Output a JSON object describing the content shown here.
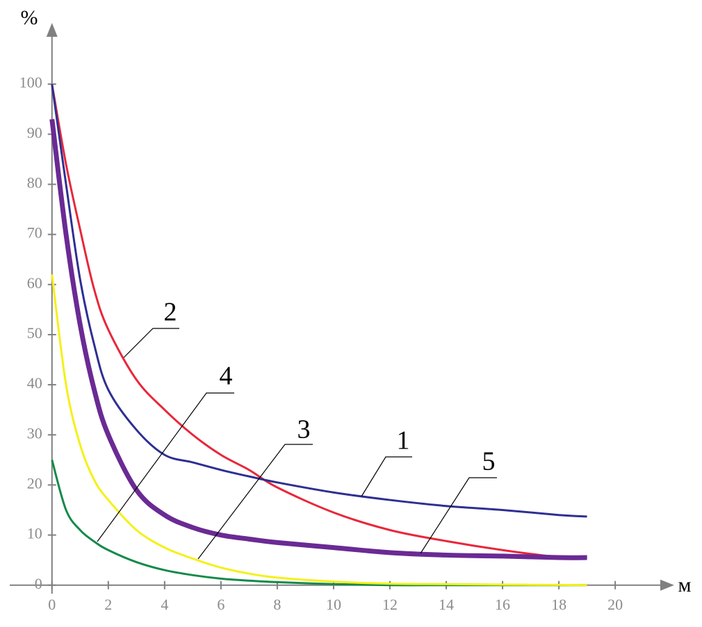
{
  "chart_data": {
    "type": "line",
    "x_label": "м",
    "y_label": "%",
    "x": [
      0,
      0.5,
      1,
      1.5,
      2,
      3,
      4,
      5,
      6,
      7,
      8,
      10,
      12,
      14,
      16,
      18,
      19
    ],
    "xlim": [
      -1.5,
      21.7
    ],
    "ylim": [
      -1.7,
      110
    ],
    "xticks": [
      0,
      2,
      4,
      6,
      8,
      10,
      12,
      14,
      16,
      18,
      20
    ],
    "yticks": [
      0,
      10,
      20,
      30,
      40,
      50,
      60,
      70,
      80,
      90,
      100
    ],
    "grid": false,
    "series": [
      {
        "name": "1",
        "color": "#2e2f93",
        "values": [
          100,
          80,
          61,
          48,
          39,
          31,
          26,
          24.5,
          23,
          21.7,
          20.5,
          18.5,
          17,
          15.8,
          15,
          14,
          13.7
        ]
      },
      {
        "name": "2",
        "color": "#e8273a",
        "values": [
          100,
          84,
          71,
          59,
          51,
          41,
          35,
          30,
          26,
          23,
          19.5,
          14.5,
          11,
          8.8,
          7,
          5.6,
          5.5
        ]
      },
      {
        "name": "3",
        "color": "#f5f018",
        "values": [
          62,
          40,
          28,
          21,
          17,
          11,
          7.5,
          5.3,
          3.5,
          2.3,
          1.5,
          0.7,
          0.3,
          0.2,
          0.1,
          0.05,
          0
        ]
      },
      {
        "name": "4",
        "color": "#148a4a",
        "values": [
          25,
          15,
          11,
          8.7,
          7,
          4.6,
          3,
          2,
          1.3,
          0.9,
          0.6,
          0.2,
          0,
          0,
          0,
          0,
          0
        ]
      },
      {
        "name": "5",
        "color": "#6a2a94",
        "values": [
          93,
          70,
          52,
          39,
          30,
          19,
          14,
          11.5,
          10,
          9.2,
          8.5,
          7.5,
          6.5,
          6,
          5.8,
          5.5,
          5.5
        ]
      }
    ]
  }
}
